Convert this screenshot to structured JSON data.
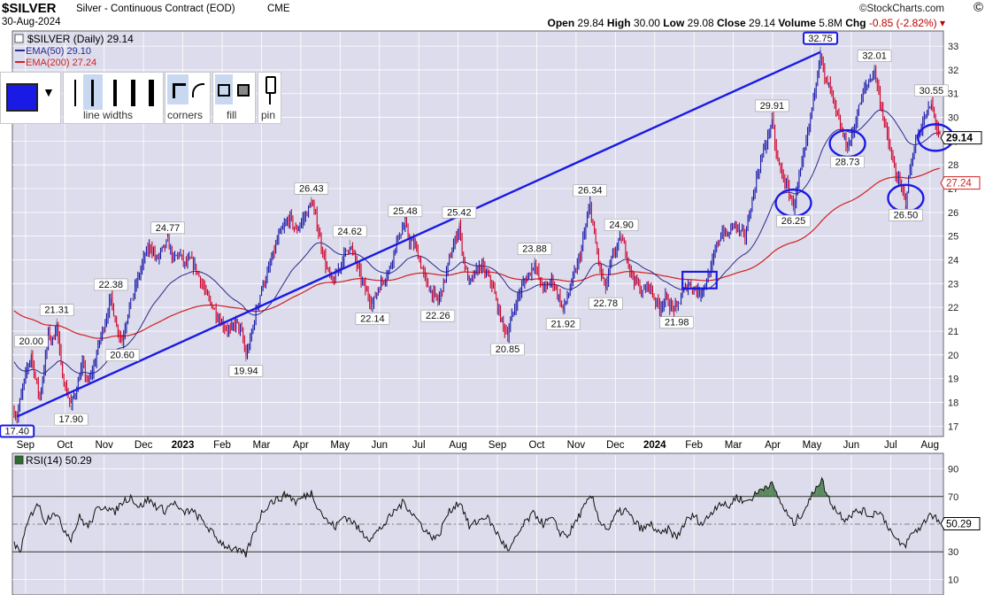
{
  "header": {
    "ticker": "$SILVER",
    "subtitle": "Silver - Continuous Contract (EOD)",
    "exchange": "CME",
    "date": "30-Aug-2024",
    "brand": "©StockCharts.com",
    "open_label": "Open",
    "open": "29.84",
    "high_label": "High",
    "high": "30.00",
    "low_label": "Low",
    "low": "29.08",
    "close_label": "Close",
    "close": "29.14",
    "volume_label": "Volume",
    "volume": "5.8M",
    "chg_label": "Chg",
    "chg": "-0.85 (-2.82%)"
  },
  "legend": {
    "price": "$SILVER (Daily) 29.14",
    "ema50": "EMA(50) 29.10",
    "ema200": "EMA(200) 27.24"
  },
  "toolbar": {
    "line_widths": "line widths",
    "corners": "corners",
    "fill": "fill",
    "pin": "pin"
  },
  "rsi_label": "RSI(14) 50.29",
  "chart_data": {
    "type": "line",
    "colors": {
      "price_up": "#1a1aa8",
      "price_down": "#d0002a",
      "ema50": "#2a2a8a",
      "ema200": "#d02020",
      "annotation": "#1a1ae6",
      "rsi_fill": "#2e6b2e"
    },
    "y_axis": {
      "ticks": [
        17,
        18,
        19,
        20,
        21,
        22,
        23,
        24,
        25,
        26,
        27,
        28,
        29,
        30,
        31,
        32,
        33
      ],
      "range": [
        16.6,
        33.6
      ]
    },
    "x_axis": {
      "ticks": [
        "Sep",
        "Oct",
        "Nov",
        "Dec",
        "2023",
        "Feb",
        "Mar",
        "Apr",
        "May",
        "Jun",
        "Jul",
        "Aug",
        "Sep",
        "Oct",
        "Nov",
        "Dec",
        "2024",
        "Feb",
        "Mar",
        "Apr",
        "May",
        "Jun",
        "Jul",
        "Aug"
      ],
      "bold_ticks": [
        "2023",
        "2024"
      ]
    },
    "price_anchors": [
      [
        0,
        17.6
      ],
      [
        2,
        17.4
      ],
      [
        6,
        18.6
      ],
      [
        9,
        19.4
      ],
      [
        12,
        20.0
      ],
      [
        15,
        19.0
      ],
      [
        18,
        18.2
      ],
      [
        21,
        19.4
      ],
      [
        24,
        20.9
      ],
      [
        27,
        20.6
      ],
      [
        30,
        21.3
      ],
      [
        33,
        19.5
      ],
      [
        36,
        18.6
      ],
      [
        40,
        17.9
      ],
      [
        44,
        18.6
      ],
      [
        48,
        19.6
      ],
      [
        52,
        18.8
      ],
      [
        56,
        19.5
      ],
      [
        60,
        20.6
      ],
      [
        64,
        21.4
      ],
      [
        68,
        22.4
      ],
      [
        72,
        21.2
      ],
      [
        76,
        20.6
      ],
      [
        80,
        21.8
      ],
      [
        84,
        22.6
      ],
      [
        88,
        23.4
      ],
      [
        92,
        24.2
      ],
      [
        96,
        24.6
      ],
      [
        100,
        24.0
      ],
      [
        104,
        24.4
      ],
      [
        108,
        24.77
      ],
      [
        112,
        24.0
      ],
      [
        116,
        24.3
      ],
      [
        120,
        23.8
      ],
      [
        124,
        24.0
      ],
      [
        128,
        23.6
      ],
      [
        132,
        23.0
      ],
      [
        136,
        22.4
      ],
      [
        140,
        22.0
      ],
      [
        144,
        21.5
      ],
      [
        148,
        21.2
      ],
      [
        152,
        21.0
      ],
      [
        156,
        21.4
      ],
      [
        160,
        20.9
      ],
      [
        163,
        19.94
      ],
      [
        166,
        20.6
      ],
      [
        170,
        21.8
      ],
      [
        174,
        22.8
      ],
      [
        178,
        23.4
      ],
      [
        182,
        24.2
      ],
      [
        186,
        25.0
      ],
      [
        190,
        25.4
      ],
      [
        194,
        25.8
      ],
      [
        198,
        25.2
      ],
      [
        202,
        25.6
      ],
      [
        206,
        26.0
      ],
      [
        209,
        26.43
      ],
      [
        212,
        25.8
      ],
      [
        216,
        24.6
      ],
      [
        220,
        23.6
      ],
      [
        224,
        23.0
      ],
      [
        228,
        23.6
      ],
      [
        232,
        24.2
      ],
      [
        236,
        24.62
      ],
      [
        240,
        24.0
      ],
      [
        244,
        23.2
      ],
      [
        248,
        22.6
      ],
      [
        252,
        22.14
      ],
      [
        256,
        22.8
      ],
      [
        260,
        23.2
      ],
      [
        264,
        23.6
      ],
      [
        268,
        24.6
      ],
      [
        272,
        25.2
      ],
      [
        275,
        25.48
      ],
      [
        278,
        24.8
      ],
      [
        282,
        24.6
      ],
      [
        286,
        23.8
      ],
      [
        290,
        23.0
      ],
      [
        294,
        22.6
      ],
      [
        298,
        22.26
      ],
      [
        302,
        23.0
      ],
      [
        306,
        24.0
      ],
      [
        310,
        24.8
      ],
      [
        313,
        25.42
      ],
      [
        316,
        24.0
      ],
      [
        320,
        23.0
      ],
      [
        324,
        23.4
      ],
      [
        328,
        23.8
      ],
      [
        332,
        23.4
      ],
      [
        336,
        23.0
      ],
      [
        340,
        22.0
      ],
      [
        344,
        21.2
      ],
      [
        347,
        20.85
      ],
      [
        350,
        21.6
      ],
      [
        354,
        22.4
      ],
      [
        358,
        23.0
      ],
      [
        362,
        23.4
      ],
      [
        366,
        23.88
      ],
      [
        370,
        23.0
      ],
      [
        374,
        22.8
      ],
      [
        378,
        23.2
      ],
      [
        382,
        22.6
      ],
      [
        386,
        21.92
      ],
      [
        390,
        22.6
      ],
      [
        394,
        23.4
      ],
      [
        398,
        24.2
      ],
      [
        402,
        25.4
      ],
      [
        405,
        26.34
      ],
      [
        408,
        25.0
      ],
      [
        412,
        23.6
      ],
      [
        416,
        22.78
      ],
      [
        420,
        24.0
      ],
      [
        424,
        24.6
      ],
      [
        427,
        24.9
      ],
      [
        430,
        24.4
      ],
      [
        434,
        23.4
      ],
      [
        438,
        23.0
      ],
      [
        442,
        22.6
      ],
      [
        446,
        23.0
      ],
      [
        450,
        22.4
      ],
      [
        454,
        22.0
      ],
      [
        458,
        22.4
      ],
      [
        462,
        22.0
      ],
      [
        466,
        21.98
      ],
      [
        470,
        22.6
      ],
      [
        474,
        23.0
      ],
      [
        478,
        22.8
      ],
      [
        482,
        22.6
      ],
      [
        486,
        23.0
      ],
      [
        490,
        23.6
      ],
      [
        494,
        24.6
      ],
      [
        498,
        25.2
      ],
      [
        502,
        25.0
      ],
      [
        506,
        25.6
      ],
      [
        510,
        25.2
      ],
      [
        514,
        25.0
      ],
      [
        518,
        26.2
      ],
      [
        522,
        27.4
      ],
      [
        526,
        28.4
      ],
      [
        530,
        29.2
      ],
      [
        533,
        29.91
      ],
      [
        536,
        28.4
      ],
      [
        540,
        27.6
      ],
      [
        544,
        27.0
      ],
      [
        548,
        26.25
      ],
      [
        552,
        27.4
      ],
      [
        556,
        28.6
      ],
      [
        560,
        30.0
      ],
      [
        564,
        31.6
      ],
      [
        567,
        32.75
      ],
      [
        570,
        31.6
      ],
      [
        574,
        31.2
      ],
      [
        578,
        30.2
      ],
      [
        582,
        29.4
      ],
      [
        586,
        28.73
      ],
      [
        590,
        29.4
      ],
      [
        594,
        30.4
      ],
      [
        598,
        31.2
      ],
      [
        602,
        31.6
      ],
      [
        605,
        32.01
      ],
      [
        608,
        31.0
      ],
      [
        612,
        29.8
      ],
      [
        616,
        28.6
      ],
      [
        620,
        27.6
      ],
      [
        624,
        27.0
      ],
      [
        627,
        26.5
      ],
      [
        630,
        27.8
      ],
      [
        634,
        29.0
      ],
      [
        638,
        29.6
      ],
      [
        642,
        30.2
      ],
      [
        645,
        30.55
      ],
      [
        648,
        29.8
      ],
      [
        651,
        29.14
      ]
    ],
    "annotations": [
      {
        "label": "17.40",
        "i": 2,
        "v": 17.4,
        "pos": "below",
        "boxed": true
      },
      {
        "label": "20.00",
        "i": 12,
        "v": 20.0,
        "pos": "above"
      },
      {
        "label": "17.90",
        "i": 40,
        "v": 17.9,
        "pos": "below"
      },
      {
        "label": "21.31",
        "i": 30,
        "v": 21.31,
        "pos": "above"
      },
      {
        "label": "20.60",
        "i": 76,
        "v": 20.6,
        "pos": "below"
      },
      {
        "label": "22.38",
        "i": 68,
        "v": 22.38,
        "pos": "above"
      },
      {
        "label": "24.77",
        "i": 108,
        "v": 24.77,
        "pos": "above"
      },
      {
        "label": "19.94",
        "i": 163,
        "v": 19.94,
        "pos": "below"
      },
      {
        "label": "26.43",
        "i": 209,
        "v": 26.43,
        "pos": "above"
      },
      {
        "label": "24.62",
        "i": 236,
        "v": 24.62,
        "pos": "above"
      },
      {
        "label": "22.14",
        "i": 252,
        "v": 22.14,
        "pos": "below"
      },
      {
        "label": "25.48",
        "i": 275,
        "v": 25.48,
        "pos": "above"
      },
      {
        "label": "22.26",
        "i": 298,
        "v": 22.26,
        "pos": "below"
      },
      {
        "label": "25.42",
        "i": 313,
        "v": 25.42,
        "pos": "above"
      },
      {
        "label": "20.85",
        "i": 347,
        "v": 20.85,
        "pos": "below"
      },
      {
        "label": "23.88",
        "i": 366,
        "v": 23.88,
        "pos": "above"
      },
      {
        "label": "21.92",
        "i": 386,
        "v": 21.92,
        "pos": "below"
      },
      {
        "label": "26.34",
        "i": 405,
        "v": 26.34,
        "pos": "above"
      },
      {
        "label": "22.78",
        "i": 416,
        "v": 22.78,
        "pos": "below"
      },
      {
        "label": "24.90",
        "i": 427,
        "v": 24.9,
        "pos": "above"
      },
      {
        "label": "21.98",
        "i": 466,
        "v": 21.98,
        "pos": "below"
      },
      {
        "label": "29.91",
        "i": 533,
        "v": 29.91,
        "pos": "above"
      },
      {
        "label": "26.25",
        "i": 548,
        "v": 26.25,
        "pos": "below"
      },
      {
        "label": "32.75",
        "i": 567,
        "v": 32.75,
        "pos": "above",
        "boxed": true
      },
      {
        "label": "28.73",
        "i": 586,
        "v": 28.73,
        "pos": "below"
      },
      {
        "label": "32.01",
        "i": 605,
        "v": 32.01,
        "pos": "above"
      },
      {
        "label": "26.50",
        "i": 627,
        "v": 26.5,
        "pos": "below"
      },
      {
        "label": "30.55",
        "i": 645,
        "v": 30.55,
        "pos": "above"
      }
    ],
    "trendline": [
      [
        2,
        17.4
      ],
      [
        567,
        32.75
      ]
    ],
    "circles": [
      [
        586,
        28.9
      ],
      [
        548,
        26.4
      ],
      [
        627,
        26.6
      ],
      [
        648,
        29.15
      ]
    ],
    "box": {
      "i0": 470,
      "i1": 494,
      "v0": 22.8,
      "v1": 23.5
    },
    "last_price": "29.14",
    "ema200_last": "27.24",
    "rsi": {
      "ticks": [
        10,
        30,
        50,
        70,
        90
      ],
      "range": [
        0,
        100
      ],
      "last": "50.29",
      "anchors": [
        [
          0,
          35
        ],
        [
          4,
          30
        ],
        [
          10,
          52
        ],
        [
          16,
          66
        ],
        [
          22,
          52
        ],
        [
          28,
          60
        ],
        [
          34,
          48
        ],
        [
          40,
          40
        ],
        [
          46,
          55
        ],
        [
          52,
          48
        ],
        [
          58,
          60
        ],
        [
          64,
          64
        ],
        [
          70,
          58
        ],
        [
          76,
          66
        ],
        [
          82,
          70
        ],
        [
          88,
          62
        ],
        [
          94,
          68
        ],
        [
          100,
          63
        ],
        [
          106,
          60
        ],
        [
          112,
          66
        ],
        [
          118,
          58
        ],
        [
          124,
          60
        ],
        [
          130,
          55
        ],
        [
          136,
          48
        ],
        [
          142,
          40
        ],
        [
          148,
          35
        ],
        [
          154,
          32
        ],
        [
          158,
          30
        ],
        [
          163,
          28
        ],
        [
          168,
          42
        ],
        [
          174,
          58
        ],
        [
          180,
          66
        ],
        [
          186,
          68
        ],
        [
          192,
          72
        ],
        [
          198,
          66
        ],
        [
          204,
          70
        ],
        [
          209,
          73
        ],
        [
          214,
          62
        ],
        [
          220,
          52
        ],
        [
          226,
          48
        ],
        [
          232,
          56
        ],
        [
          238,
          52
        ],
        [
          244,
          44
        ],
        [
          250,
          40
        ],
        [
          256,
          45
        ],
        [
          262,
          52
        ],
        [
          268,
          60
        ],
        [
          274,
          66
        ],
        [
          280,
          58
        ],
        [
          286,
          50
        ],
        [
          292,
          42
        ],
        [
          298,
          40
        ],
        [
          304,
          56
        ],
        [
          310,
          64
        ],
        [
          314,
          66
        ],
        [
          320,
          48
        ],
        [
          326,
          52
        ],
        [
          332,
          56
        ],
        [
          338,
          46
        ],
        [
          344,
          36
        ],
        [
          348,
          30
        ],
        [
          354,
          42
        ],
        [
          360,
          52
        ],
        [
          366,
          58
        ],
        [
          372,
          50
        ],
        [
          378,
          54
        ],
        [
          384,
          44
        ],
        [
          390,
          42
        ],
        [
          396,
          54
        ],
        [
          402,
          64
        ],
        [
          406,
          70
        ],
        [
          412,
          52
        ],
        [
          418,
          46
        ],
        [
          424,
          58
        ],
        [
          430,
          60
        ],
        [
          436,
          52
        ],
        [
          442,
          46
        ],
        [
          448,
          50
        ],
        [
          454,
          42
        ],
        [
          460,
          46
        ],
        [
          466,
          40
        ],
        [
          472,
          52
        ],
        [
          478,
          56
        ],
        [
          484,
          50
        ],
        [
          490,
          58
        ],
        [
          496,
          66
        ],
        [
          502,
          62
        ],
        [
          508,
          70
        ],
        [
          514,
          66
        ],
        [
          520,
          70
        ],
        [
          526,
          76
        ],
        [
          532,
          80
        ],
        [
          536,
          72
        ],
        [
          542,
          60
        ],
        [
          548,
          50
        ],
        [
          554,
          58
        ],
        [
          560,
          68
        ],
        [
          564,
          78
        ],
        [
          568,
          82
        ],
        [
          572,
          70
        ],
        [
          578,
          60
        ],
        [
          584,
          54
        ],
        [
          590,
          58
        ],
        [
          596,
          60
        ],
        [
          602,
          56
        ],
        [
          608,
          60
        ],
        [
          614,
          50
        ],
        [
          620,
          38
        ],
        [
          626,
          34
        ],
        [
          632,
          44
        ],
        [
          638,
          48
        ],
        [
          644,
          58
        ],
        [
          648,
          55
        ],
        [
          651,
          50.29
        ]
      ]
    }
  }
}
